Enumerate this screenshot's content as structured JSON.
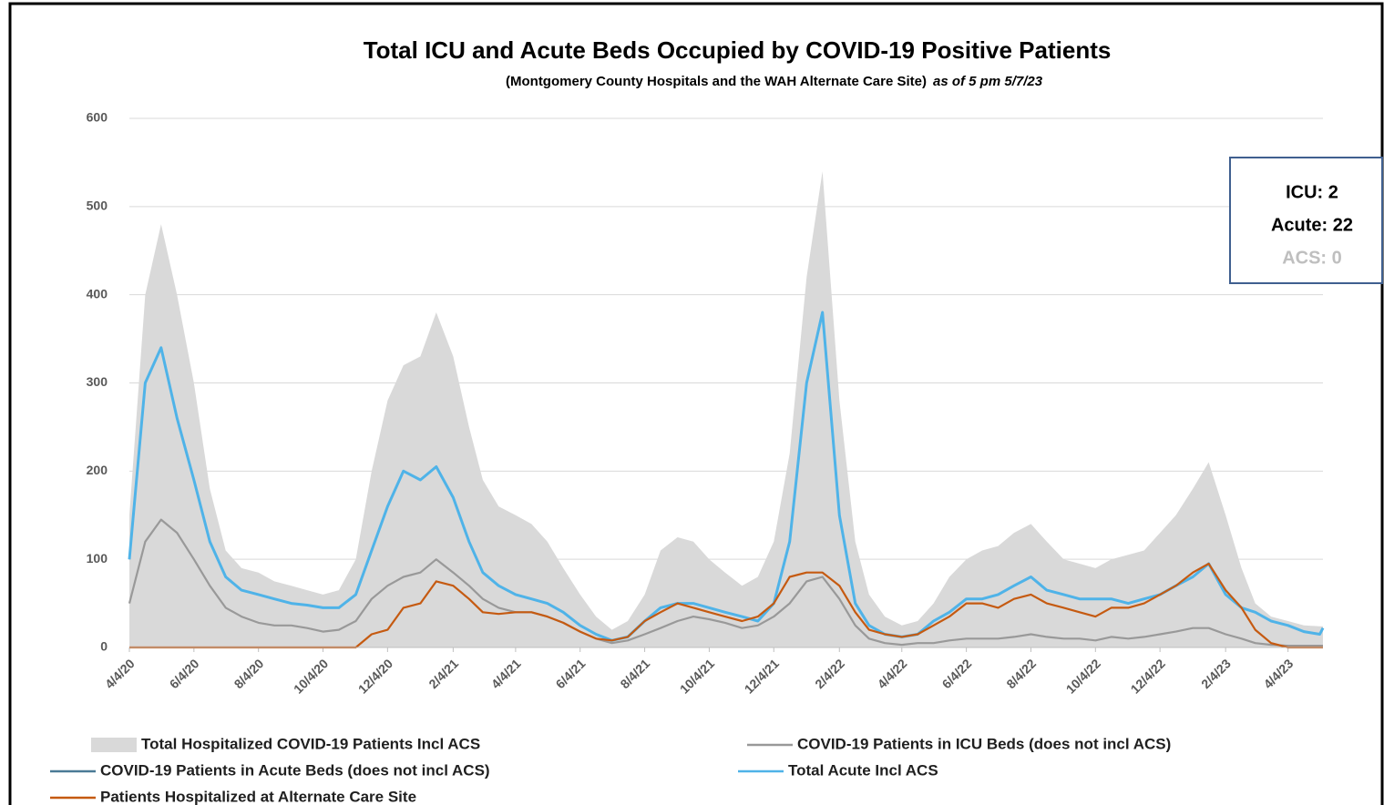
{
  "chart_data": {
    "type": "line",
    "title": "Total ICU and Acute Beds Occupied by COVID-19 Positive Patients",
    "subtitle": "(Montgomery County Hospitals and the WAH Alternate Care Site)",
    "subtitle_note": "as of  5 pm  5/7/23",
    "annotations": [
      "ICU: 2",
      "Acute: 22",
      "ACS: 0"
    ],
    "xlim": [
      "4/4/20",
      "5/7/23"
    ],
    "xticks": [
      "4/4/20",
      "6/4/20",
      "8/4/20",
      "10/4/20",
      "12/4/20",
      "2/4/21",
      "4/4/21",
      "6/4/21",
      "8/4/21",
      "10/4/21",
      "12/4/21",
      "2/4/22",
      "4/4/22",
      "6/4/22",
      "8/4/22",
      "10/4/22",
      "12/4/22",
      "2/4/23",
      "4/4/23"
    ],
    "ylim": [
      0,
      600
    ],
    "yticks": [
      0,
      100,
      200,
      300,
      400,
      500,
      600
    ],
    "grid": true,
    "x": [
      "4/4/20",
      "4/19/20",
      "5/4/20",
      "5/19/20",
      "6/4/20",
      "6/19/20",
      "7/4/20",
      "7/19/20",
      "8/4/20",
      "8/19/20",
      "9/4/20",
      "9/19/20",
      "10/4/20",
      "10/19/20",
      "11/4/20",
      "11/19/20",
      "12/4/20",
      "12/19/20",
      "1/4/21",
      "1/19/21",
      "2/4/21",
      "2/19/21",
      "3/4/21",
      "3/19/21",
      "4/4/21",
      "4/19/21",
      "5/4/21",
      "5/19/21",
      "6/4/21",
      "6/19/21",
      "7/4/21",
      "7/19/21",
      "8/4/21",
      "8/19/21",
      "9/4/21",
      "9/19/21",
      "10/4/21",
      "10/19/21",
      "11/4/21",
      "11/19/21",
      "12/4/21",
      "12/19/21",
      "1/4/22",
      "1/19/22",
      "2/4/22",
      "2/19/22",
      "3/4/22",
      "3/19/22",
      "4/4/22",
      "4/19/22",
      "5/4/22",
      "5/19/22",
      "6/4/22",
      "6/19/22",
      "7/4/22",
      "7/19/22",
      "8/4/22",
      "8/19/22",
      "9/4/22",
      "9/19/22",
      "10/4/22",
      "10/19/22",
      "11/4/22",
      "11/19/22",
      "12/4/22",
      "12/19/22",
      "1/4/23",
      "1/19/23",
      "2/4/23",
      "2/19/23",
      "3/4/23",
      "3/19/23",
      "4/4/23",
      "4/19/23",
      "5/4/23",
      "5/7/23"
    ],
    "series": [
      {
        "name": "Total Hospitalized COVID-19 Patients Incl ACS",
        "type": "area",
        "color": "#d9d9d9",
        "values": [
          150,
          400,
          480,
          400,
          300,
          180,
          110,
          90,
          85,
          75,
          70,
          65,
          60,
          65,
          100,
          200,
          280,
          320,
          330,
          380,
          330,
          250,
          190,
          160,
          150,
          140,
          120,
          90,
          60,
          35,
          20,
          30,
          60,
          110,
          125,
          120,
          100,
          85,
          70,
          80,
          120,
          220,
          420,
          540,
          280,
          120,
          60,
          35,
          25,
          30,
          50,
          80,
          100,
          110,
          115,
          130,
          140,
          120,
          100,
          95,
          90,
          100,
          105,
          110,
          130,
          150,
          180,
          210,
          150,
          90,
          50,
          35,
          30,
          25,
          24,
          24
        ]
      },
      {
        "name": "COVID-19 Patients in  ICU Beds (does not incl ACS)",
        "color": "#999999",
        "values": [
          50,
          120,
          145,
          130,
          100,
          70,
          45,
          35,
          28,
          25,
          25,
          22,
          18,
          20,
          30,
          55,
          70,
          80,
          85,
          100,
          85,
          70,
          55,
          45,
          40,
          40,
          35,
          28,
          18,
          10,
          5,
          8,
          15,
          22,
          30,
          35,
          32,
          28,
          22,
          25,
          35,
          50,
          75,
          80,
          55,
          25,
          10,
          5,
          3,
          5,
          5,
          8,
          10,
          10,
          10,
          12,
          15,
          12,
          10,
          10,
          8,
          12,
          10,
          12,
          15,
          18,
          22,
          22,
          15,
          10,
          5,
          3,
          2,
          2,
          2,
          2
        ]
      },
      {
        "name": "COVID-19 Patients in Acute Beds (does not incl ACS)",
        "color": "#4a7a96",
        "values": [
          100,
          300,
          340,
          260,
          190,
          120,
          80,
          65,
          60,
          55,
          50,
          48,
          45,
          45,
          60,
          110,
          160,
          200,
          190,
          205,
          170,
          120,
          85,
          70,
          60,
          55,
          50,
          40,
          25,
          15,
          8,
          12,
          30,
          45,
          50,
          50,
          45,
          40,
          35,
          30,
          50,
          120,
          300,
          380,
          150,
          50,
          25,
          15,
          12,
          15,
          30,
          40,
          55,
          55,
          60,
          70,
          80,
          65,
          60,
          55,
          55,
          55,
          50,
          55,
          60,
          70,
          80,
          95,
          60,
          45,
          40,
          30,
          25,
          18,
          15,
          22
        ]
      },
      {
        "name": "Total Acute Incl ACS",
        "color": "#4fb3e8",
        "values": [
          100,
          300,
          340,
          260,
          190,
          120,
          80,
          65,
          60,
          55,
          50,
          48,
          45,
          45,
          60,
          110,
          160,
          200,
          190,
          205,
          170,
          120,
          85,
          70,
          60,
          55,
          50,
          40,
          25,
          15,
          8,
          12,
          30,
          45,
          50,
          50,
          45,
          40,
          35,
          30,
          50,
          120,
          300,
          380,
          150,
          50,
          25,
          15,
          12,
          15,
          30,
          40,
          55,
          55,
          60,
          70,
          80,
          65,
          60,
          55,
          55,
          55,
          50,
          55,
          60,
          70,
          80,
          95,
          60,
          45,
          40,
          30,
          25,
          18,
          15,
          22
        ]
      },
      {
        "name": "Patients Hospitalized at Alternate Care Site",
        "color": "#c55a11",
        "values": [
          0,
          0,
          0,
          0,
          0,
          0,
          0,
          0,
          0,
          0,
          0,
          0,
          0,
          0,
          0,
          15,
          20,
          45,
          50,
          75,
          70,
          55,
          40,
          38,
          40,
          40,
          35,
          28,
          18,
          10,
          8,
          12,
          30,
          40,
          50,
          45,
          40,
          35,
          30,
          35,
          50,
          80,
          85,
          85,
          70,
          40,
          20,
          15,
          12,
          15,
          25,
          35,
          50,
          50,
          45,
          55,
          60,
          50,
          45,
          40,
          35,
          45,
          45,
          50,
          60,
          70,
          85,
          95,
          65,
          45,
          20,
          5,
          0,
          0,
          0,
          0
        ]
      }
    ]
  }
}
